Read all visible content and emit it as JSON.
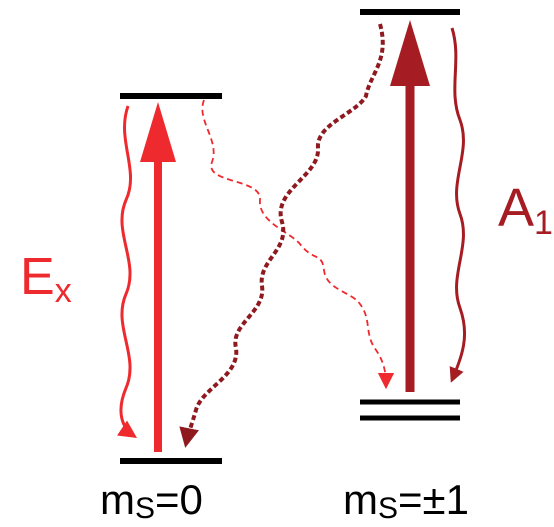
{
  "labels": {
    "ex_main": "E",
    "ex_sub": "x",
    "a1_main": "A",
    "a1_sub": "1",
    "ms0_main": "m",
    "ms0_sub": "S",
    "ms0_rest": "=0",
    "ms1_main": "m",
    "ms1_sub": "S",
    "ms1_rest": "=±1"
  },
  "colors": {
    "level": "#000000",
    "bright_red": "#ee2a2e",
    "dark_red": "#a51d22",
    "darker_red": "#8e1a1f"
  }
}
